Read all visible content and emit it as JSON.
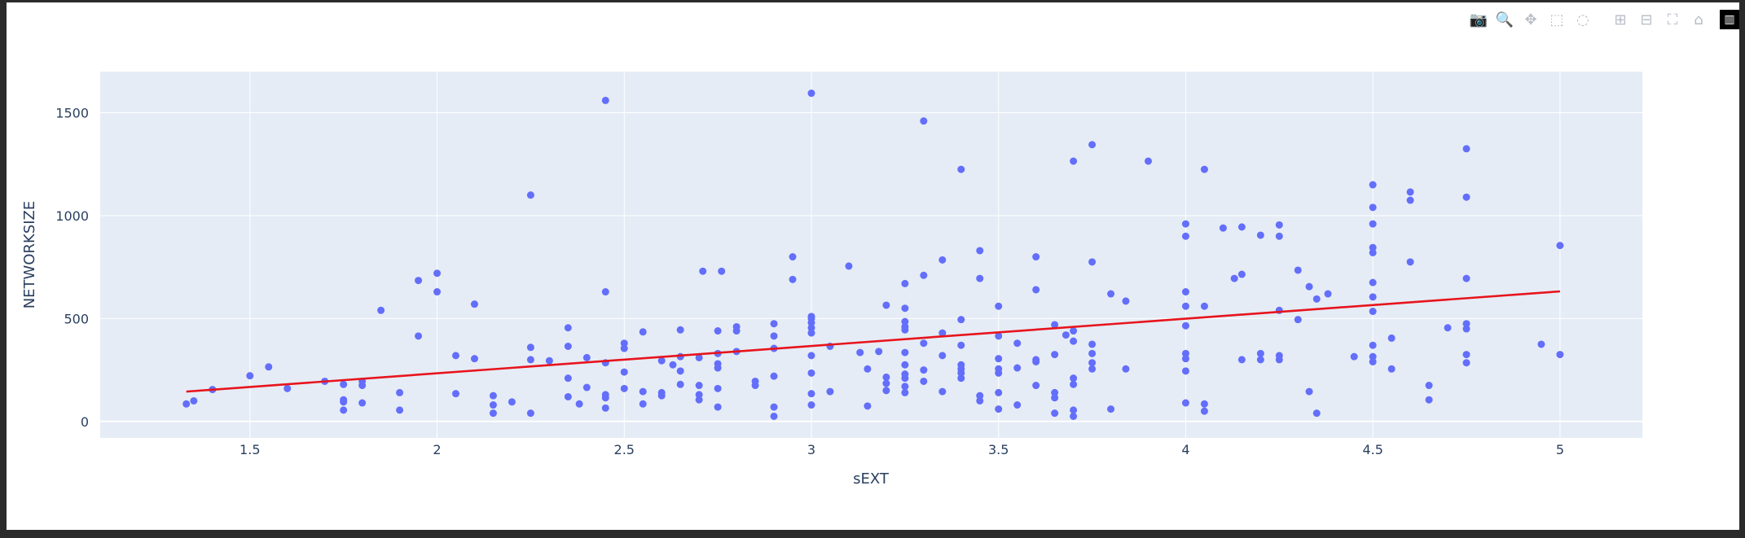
{
  "toolbar": {
    "buttons": [
      {
        "icon": "camera-icon",
        "glyph": "📷",
        "label": "Download plot as a png"
      },
      {
        "icon": "zoom-icon",
        "glyph": "🔍",
        "label": "Zoom",
        "active": true
      },
      {
        "icon": "pan-icon",
        "glyph": "✥",
        "label": "Pan"
      },
      {
        "icon": "box-select-icon",
        "glyph": "⬚",
        "label": "Box Select"
      },
      {
        "icon": "lasso-select-icon",
        "glyph": "◌",
        "label": "Lasso Select"
      },
      {
        "icon": "zoom-in-icon",
        "glyph": "⊞",
        "label": "Zoom in"
      },
      {
        "icon": "zoom-out-icon",
        "glyph": "⊟",
        "label": "Zoom out"
      },
      {
        "icon": "autoscale-icon",
        "glyph": "⛶",
        "label": "Autoscale"
      },
      {
        "icon": "reset-axes-icon",
        "glyph": "⌂",
        "label": "Reset axes"
      }
    ],
    "logo_glyph": "▥"
  },
  "chart_data": {
    "type": "scatter",
    "xlabel": "sEXT",
    "ylabel": "NETWORKSIZE",
    "xlim": [
      1.1,
      5.22
    ],
    "ylim": [
      -80,
      1700
    ],
    "xticks": [
      1.5,
      2,
      2.5,
      3,
      3.5,
      4,
      4.5,
      5
    ],
    "yticks": [
      0,
      500,
      1000,
      1500
    ],
    "xtick_labels": [
      "1.5",
      "2",
      "2.5",
      "3",
      "3.5",
      "4",
      "4.5",
      "5"
    ],
    "ytick_labels": [
      "0",
      "500",
      "1000",
      "1500"
    ],
    "grid": true,
    "marker_color": "#636efa",
    "trendline_color": "#e8141c",
    "trendline": {
      "x": [
        1.33,
        5.0
      ],
      "y": [
        145,
        632
      ]
    },
    "points": [
      [
        1.33,
        85
      ],
      [
        1.35,
        100
      ],
      [
        1.4,
        155
      ],
      [
        1.5,
        222
      ],
      [
        1.55,
        265
      ],
      [
        1.6,
        160
      ],
      [
        1.7,
        195
      ],
      [
        1.75,
        55
      ],
      [
        1.75,
        95
      ],
      [
        1.75,
        105
      ],
      [
        1.75,
        180
      ],
      [
        1.8,
        90
      ],
      [
        1.8,
        175
      ],
      [
        1.8,
        195
      ],
      [
        1.85,
        540
      ],
      [
        1.9,
        55
      ],
      [
        1.9,
        140
      ],
      [
        1.95,
        415
      ],
      [
        1.95,
        685
      ],
      [
        2.0,
        630
      ],
      [
        2.0,
        720
      ],
      [
        2.05,
        135
      ],
      [
        2.05,
        320
      ],
      [
        2.1,
        305
      ],
      [
        2.1,
        570
      ],
      [
        2.15,
        40
      ],
      [
        2.15,
        80
      ],
      [
        2.15,
        125
      ],
      [
        2.2,
        95
      ],
      [
        2.25,
        40
      ],
      [
        2.25,
        300
      ],
      [
        2.25,
        360
      ],
      [
        2.25,
        1100
      ],
      [
        2.3,
        295
      ],
      [
        2.35,
        120
      ],
      [
        2.35,
        210
      ],
      [
        2.35,
        365
      ],
      [
        2.35,
        455
      ],
      [
        2.38,
        85
      ],
      [
        2.4,
        165
      ],
      [
        2.4,
        310
      ],
      [
        2.45,
        65
      ],
      [
        2.45,
        115
      ],
      [
        2.45,
        130
      ],
      [
        2.45,
        285
      ],
      [
        2.45,
        630
      ],
      [
        2.45,
        1560
      ],
      [
        2.5,
        160
      ],
      [
        2.5,
        240
      ],
      [
        2.5,
        355
      ],
      [
        2.5,
        380
      ],
      [
        2.55,
        85
      ],
      [
        2.55,
        145
      ],
      [
        2.55,
        435
      ],
      [
        2.6,
        125
      ],
      [
        2.6,
        140
      ],
      [
        2.6,
        295
      ],
      [
        2.63,
        275
      ],
      [
        2.65,
        180
      ],
      [
        2.65,
        245
      ],
      [
        2.65,
        315
      ],
      [
        2.65,
        445
      ],
      [
        2.7,
        105
      ],
      [
        2.7,
        130
      ],
      [
        2.7,
        175
      ],
      [
        2.7,
        310
      ],
      [
        2.71,
        730
      ],
      [
        2.75,
        70
      ],
      [
        2.75,
        160
      ],
      [
        2.75,
        260
      ],
      [
        2.75,
        280
      ],
      [
        2.75,
        330
      ],
      [
        2.75,
        440
      ],
      [
        2.76,
        730
      ],
      [
        2.8,
        340
      ],
      [
        2.8,
        440
      ],
      [
        2.8,
        460
      ],
      [
        2.85,
        175
      ],
      [
        2.85,
        195
      ],
      [
        2.9,
        25
      ],
      [
        2.9,
        70
      ],
      [
        2.9,
        220
      ],
      [
        2.9,
        355
      ],
      [
        2.9,
        415
      ],
      [
        2.9,
        475
      ],
      [
        2.95,
        690
      ],
      [
        2.95,
        800
      ],
      [
        3.0,
        80
      ],
      [
        3.0,
        135
      ],
      [
        3.0,
        235
      ],
      [
        3.0,
        320
      ],
      [
        3.0,
        430
      ],
      [
        3.0,
        455
      ],
      [
        3.0,
        480
      ],
      [
        3.0,
        500
      ],
      [
        3.0,
        510
      ],
      [
        3.0,
        1595
      ],
      [
        3.05,
        145
      ],
      [
        3.05,
        365
      ],
      [
        3.1,
        755
      ],
      [
        3.13,
        335
      ],
      [
        3.15,
        75
      ],
      [
        3.15,
        255
      ],
      [
        3.18,
        340
      ],
      [
        3.2,
        150
      ],
      [
        3.2,
        185
      ],
      [
        3.2,
        215
      ],
      [
        3.2,
        565
      ],
      [
        3.25,
        140
      ],
      [
        3.25,
        170
      ],
      [
        3.25,
        210
      ],
      [
        3.25,
        230
      ],
      [
        3.25,
        275
      ],
      [
        3.25,
        335
      ],
      [
        3.25,
        445
      ],
      [
        3.25,
        460
      ],
      [
        3.25,
        485
      ],
      [
        3.25,
        550
      ],
      [
        3.25,
        670
      ],
      [
        3.3,
        195
      ],
      [
        3.3,
        250
      ],
      [
        3.3,
        380
      ],
      [
        3.3,
        710
      ],
      [
        3.3,
        1460
      ],
      [
        3.35,
        145
      ],
      [
        3.35,
        320
      ],
      [
        3.35,
        430
      ],
      [
        3.35,
        785
      ],
      [
        3.4,
        210
      ],
      [
        3.4,
        235
      ],
      [
        3.4,
        255
      ],
      [
        3.4,
        275
      ],
      [
        3.4,
        370
      ],
      [
        3.4,
        495
      ],
      [
        3.4,
        1225
      ],
      [
        3.45,
        100
      ],
      [
        3.45,
        125
      ],
      [
        3.45,
        695
      ],
      [
        3.45,
        830
      ],
      [
        3.5,
        60
      ],
      [
        3.5,
        140
      ],
      [
        3.5,
        235
      ],
      [
        3.5,
        255
      ],
      [
        3.5,
        305
      ],
      [
        3.5,
        415
      ],
      [
        3.5,
        560
      ],
      [
        3.55,
        80
      ],
      [
        3.55,
        260
      ],
      [
        3.55,
        380
      ],
      [
        3.6,
        175
      ],
      [
        3.6,
        290
      ],
      [
        3.6,
        300
      ],
      [
        3.6,
        640
      ],
      [
        3.6,
        800
      ],
      [
        3.65,
        40
      ],
      [
        3.65,
        115
      ],
      [
        3.65,
        140
      ],
      [
        3.65,
        325
      ],
      [
        3.65,
        470
      ],
      [
        3.68,
        420
      ],
      [
        3.7,
        25
      ],
      [
        3.7,
        55
      ],
      [
        3.7,
        180
      ],
      [
        3.7,
        210
      ],
      [
        3.7,
        390
      ],
      [
        3.7,
        440
      ],
      [
        3.7,
        1265
      ],
      [
        3.75,
        255
      ],
      [
        3.75,
        285
      ],
      [
        3.75,
        330
      ],
      [
        3.75,
        375
      ],
      [
        3.75,
        775
      ],
      [
        3.75,
        1345
      ],
      [
        3.8,
        60
      ],
      [
        3.8,
        620
      ],
      [
        3.84,
        255
      ],
      [
        3.84,
        585
      ],
      [
        3.9,
        1265
      ],
      [
        4.0,
        90
      ],
      [
        4.0,
        245
      ],
      [
        4.0,
        305
      ],
      [
        4.0,
        330
      ],
      [
        4.0,
        465
      ],
      [
        4.0,
        560
      ],
      [
        4.0,
        630
      ],
      [
        4.0,
        900
      ],
      [
        4.0,
        960
      ],
      [
        4.05,
        50
      ],
      [
        4.05,
        85
      ],
      [
        4.05,
        560
      ],
      [
        4.05,
        1225
      ],
      [
        4.1,
        940
      ],
      [
        4.13,
        695
      ],
      [
        4.15,
        300
      ],
      [
        4.15,
        715
      ],
      [
        4.15,
        945
      ],
      [
        4.2,
        300
      ],
      [
        4.2,
        330
      ],
      [
        4.2,
        905
      ],
      [
        4.25,
        300
      ],
      [
        4.25,
        320
      ],
      [
        4.25,
        540
      ],
      [
        4.25,
        900
      ],
      [
        4.25,
        955
      ],
      [
        4.3,
        495
      ],
      [
        4.3,
        735
      ],
      [
        4.33,
        145
      ],
      [
        4.33,
        655
      ],
      [
        4.35,
        40
      ],
      [
        4.35,
        595
      ],
      [
        4.38,
        620
      ],
      [
        4.45,
        315
      ],
      [
        4.5,
        290
      ],
      [
        4.5,
        315
      ],
      [
        4.5,
        370
      ],
      [
        4.5,
        535
      ],
      [
        4.5,
        605
      ],
      [
        4.5,
        675
      ],
      [
        4.5,
        820
      ],
      [
        4.5,
        845
      ],
      [
        4.5,
        960
      ],
      [
        4.5,
        1040
      ],
      [
        4.5,
        1150
      ],
      [
        4.55,
        255
      ],
      [
        4.55,
        405
      ],
      [
        4.6,
        775
      ],
      [
        4.6,
        1075
      ],
      [
        4.6,
        1115
      ],
      [
        4.65,
        105
      ],
      [
        4.65,
        175
      ],
      [
        4.7,
        455
      ],
      [
        4.75,
        285
      ],
      [
        4.75,
        325
      ],
      [
        4.75,
        450
      ],
      [
        4.75,
        475
      ],
      [
        4.75,
        695
      ],
      [
        4.75,
        1090
      ],
      [
        4.75,
        1325
      ],
      [
        4.95,
        375
      ],
      [
        5.0,
        325
      ],
      [
        5.0,
        855
      ]
    ]
  }
}
